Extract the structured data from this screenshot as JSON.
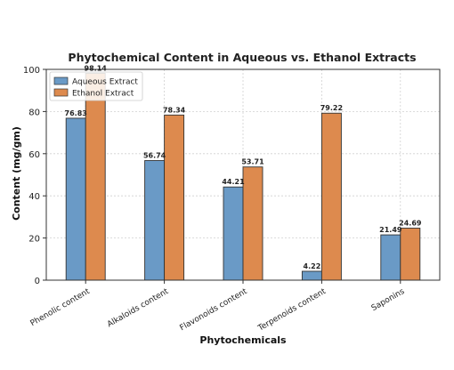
{
  "chart_data": {
    "type": "bar",
    "title": "Phytochemical Content in Aqueous vs. Ethanol Extracts",
    "xlabel": "Phytochemicals",
    "ylabel": "Content (mg/gm)",
    "categories": [
      "Phenolic content",
      "Alkaloids content",
      "Flavonoids content",
      "Terpenoids content",
      "Saponins"
    ],
    "series": [
      {
        "name": "Aqueous Extract",
        "values": [
          76.83,
          56.74,
          44.21,
          4.22,
          21.49
        ],
        "color": "#6a9ac6"
      },
      {
        "name": "Ethanol Extract",
        "values": [
          98.14,
          78.34,
          53.71,
          79.22,
          24.69
        ],
        "color": "#dd8a4e"
      }
    ],
    "ylim": [
      0,
      100
    ],
    "yticks": [
      0,
      20,
      40,
      60,
      80,
      100
    ],
    "grid": true,
    "legend_position": "top-left"
  }
}
